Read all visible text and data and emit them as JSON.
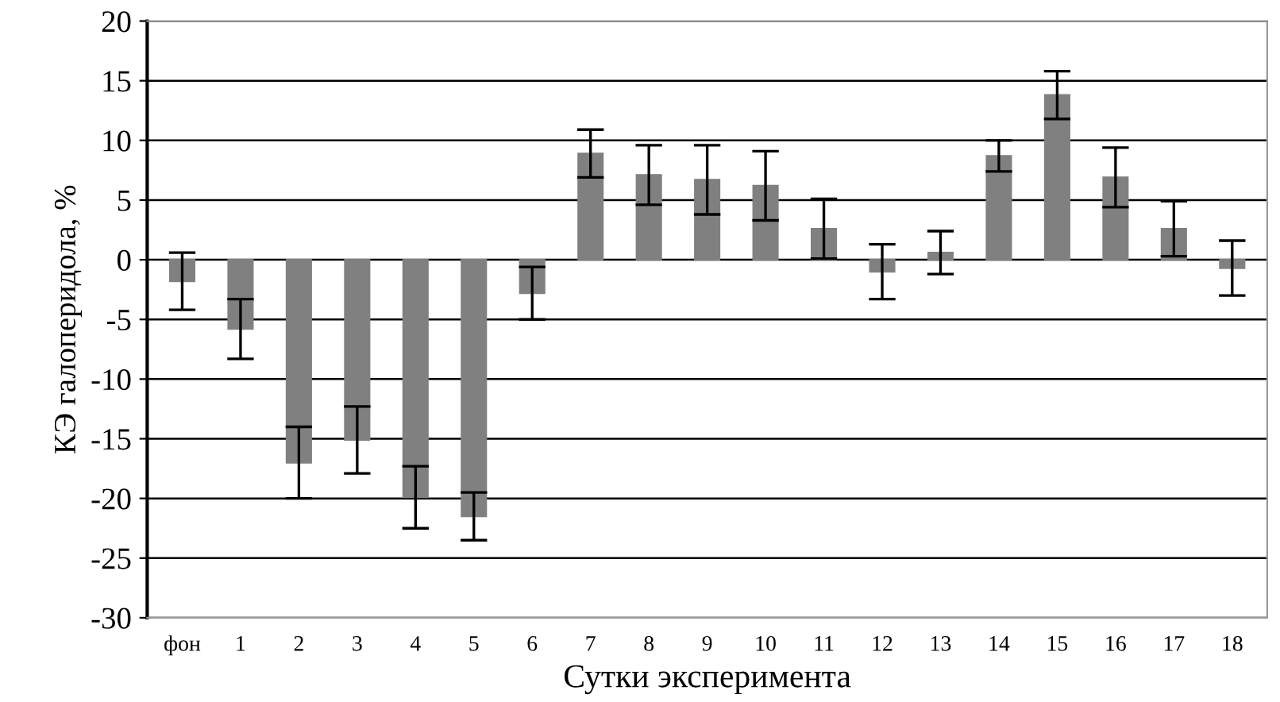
{
  "chart_data": {
    "type": "bar",
    "xlabel": "Сутки эксперимента",
    "ylabel": "КЭ галоперидола, %",
    "categories": [
      "фон",
      "1",
      "2",
      "3",
      "4",
      "5",
      "6",
      "7",
      "8",
      "9",
      "10",
      "11",
      "12",
      "13",
      "14",
      "15",
      "16",
      "17",
      "18"
    ],
    "values": [
      -1.8,
      -5.8,
      -17.0,
      -15.1,
      -19.9,
      -21.5,
      -2.8,
      8.9,
      7.1,
      6.7,
      6.2,
      2.6,
      -1.0,
      0.6,
      8.7,
      13.8,
      6.9,
      2.6,
      -0.7
    ],
    "errors": [
      2.4,
      2.5,
      3.0,
      2.8,
      2.6,
      2.0,
      2.2,
      2.0,
      2.5,
      2.9,
      2.9,
      2.5,
      2.3,
      1.8,
      1.3,
      2.0,
      2.5,
      2.3,
      2.3
    ],
    "color": "#808080",
    "ylim": [
      -30,
      20
    ],
    "yticks": [
      -30,
      -25,
      -20,
      -15,
      -10,
      -5,
      0,
      5,
      10,
      15,
      20
    ],
    "grid": "y"
  }
}
